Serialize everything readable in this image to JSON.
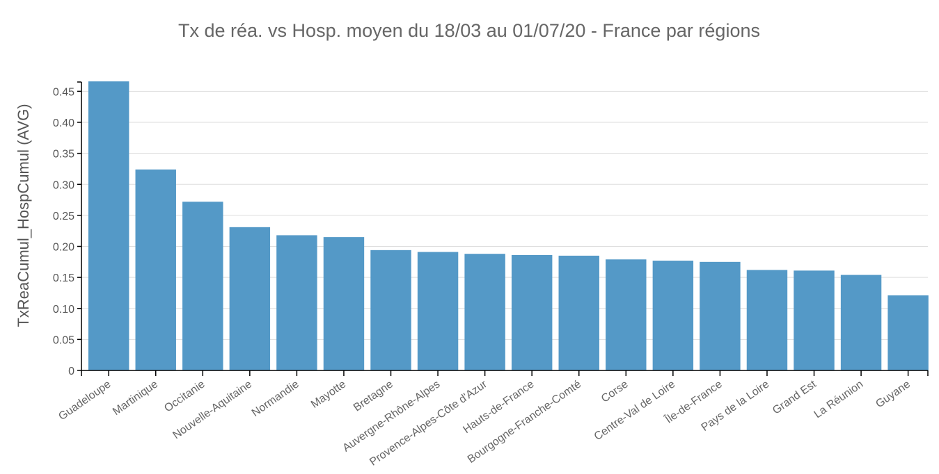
{
  "chart_data": {
    "type": "bar",
    "title": "Tx de réa. vs Hosp. moyen du 18/03 au 01/07/20  - France par régions",
    "xlabel": "",
    "ylabel": "TxReaCumul_HospCumul (AVG)",
    "ylim": [
      0,
      0.465
    ],
    "yticks": [
      0,
      0.05,
      0.1,
      0.15,
      0.2,
      0.25,
      0.3,
      0.35,
      0.4,
      0.45
    ],
    "ytick_labels": [
      "0",
      "0.05",
      "0.10",
      "0.15",
      "0.20",
      "0.25",
      "0.30",
      "0.35",
      "0.40",
      "0.45"
    ],
    "grid": true,
    "legend": "none",
    "bar_color": "#5499c7",
    "categories": [
      "Guadeloupe",
      "Martinique",
      "Occitanie",
      "Nouvelle-Aquitaine",
      "Normandie",
      "Mayotte",
      "Bretagne",
      "Auvergne-Rhône-Alpes",
      "Provence-Alpes-Côte d'Azur",
      "Hauts-de-France",
      "Bourgogne-Franche-Comté",
      "Corse",
      "Centre-Val de Loire",
      "Île-de-France",
      "Pays de la Loire",
      "Grand Est",
      "La Réunion",
      "Guyane"
    ],
    "values": [
      0.466,
      0.324,
      0.272,
      0.231,
      0.218,
      0.215,
      0.194,
      0.191,
      0.188,
      0.186,
      0.185,
      0.179,
      0.177,
      0.175,
      0.162,
      0.161,
      0.154,
      0.121
    ]
  }
}
